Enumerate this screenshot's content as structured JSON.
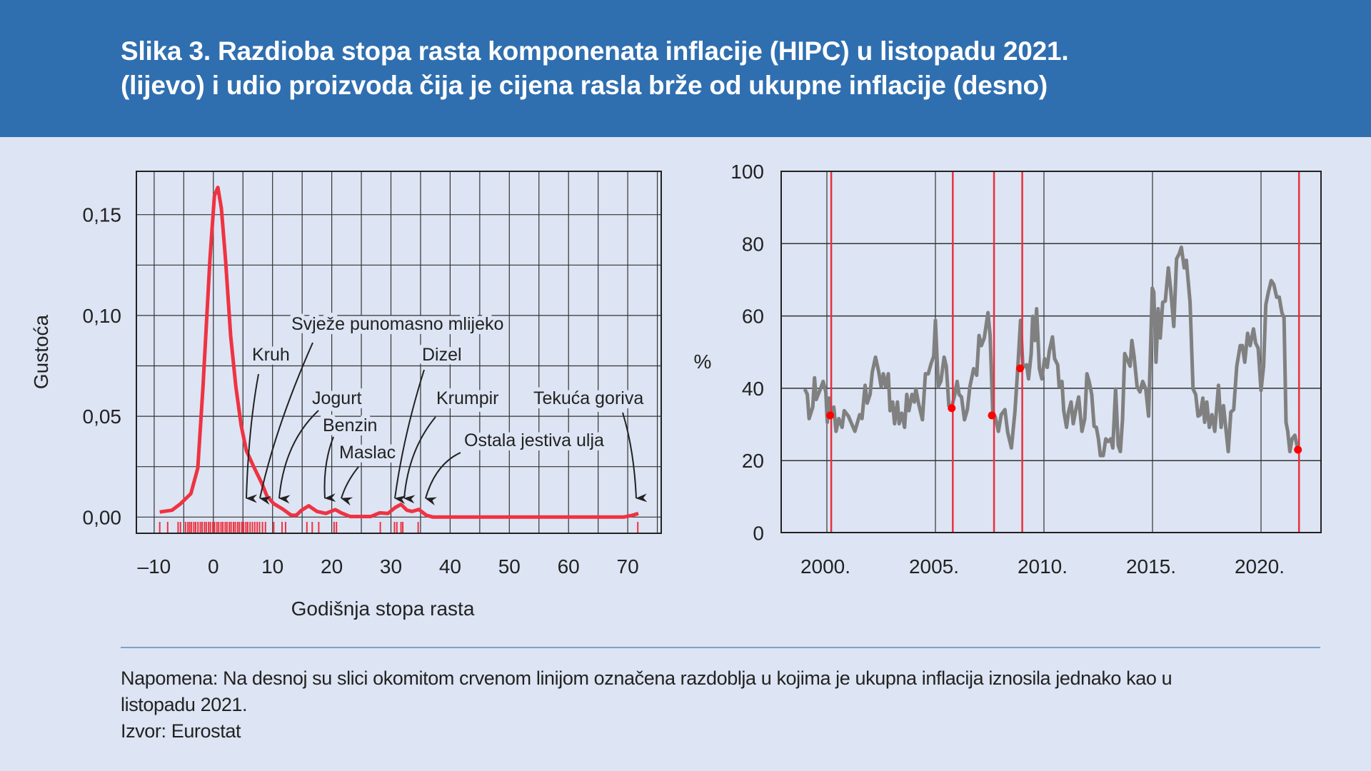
{
  "header": {
    "title_line1": "Slika 3. Razdioba stopa rasta komponenata inflacije (HIPC) u listopadu 2021.",
    "title_line2": "(lijevo) i udio proizvoda čija je cijena rasla brže od ukupne inflacije (desno)"
  },
  "colors": {
    "header_bg": "#2f6fb0",
    "background": "#dde4f3",
    "density": "#ee3342",
    "share_line": "#808080",
    "marker": "#ff0000",
    "vline": "#e8303e"
  },
  "chart_data": [
    {
      "type": "line",
      "title": "",
      "xlabel": "Godišnja stopa rasta",
      "ylabel": "Gustoća",
      "xlim": [
        -13,
        76
      ],
      "ylim": [
        -0.0083,
        0.1635
      ],
      "xticks": [
        -10,
        0,
        10,
        20,
        30,
        40,
        50,
        60,
        70
      ],
      "xtick_labels": [
        "–10",
        "0",
        "10",
        "20",
        "30",
        "40",
        "50",
        "60",
        "70"
      ],
      "yticks": [
        0,
        0.05,
        0.1,
        0.15
      ],
      "ytick_labels": [
        "0,00",
        "0,05",
        "0,10",
        "0,15"
      ],
      "grid": true,
      "series": [
        {
          "name": "density",
          "x": [
            -9.06,
            -7.0,
            -5.56,
            -3.8,
            -2.63,
            -1.75,
            -0.58,
            0.18,
            0.76,
            1.35,
            2.05,
            2.92,
            3.8,
            4.68,
            5.56,
            6.73,
            8.19,
            9.06,
            10.23,
            11.7,
            13.16,
            14.0,
            14.9,
            16.1,
            17.5,
            19.0,
            20.6,
            21.6,
            23.1,
            26.6,
            28.1,
            29.5,
            30.7,
            31.7,
            32.7,
            33.6,
            34.7,
            36.0,
            37.1,
            69.3,
            70.8,
            71.8
          ],
          "y": [
            0.0025,
            0.0034,
            0.0066,
            0.0116,
            0.0243,
            0.0647,
            0.1279,
            0.1595,
            0.1635,
            0.1532,
            0.1279,
            0.09,
            0.0647,
            0.0457,
            0.0331,
            0.0255,
            0.0167,
            0.0104,
            0.0066,
            0.004,
            0.0009,
            0.0009,
            0.0034,
            0.0056,
            0.0028,
            0.0018,
            0.0037,
            0.0021,
            0.0003,
            0.0003,
            0.0021,
            0.0018,
            0.0047,
            0.0063,
            0.0034,
            0.0028,
            0.0038,
            0.0009,
            0,
            0,
            0.0009,
            0.0018
          ]
        }
      ],
      "rug": [
        -9.06,
        -7.72,
        -5.96,
        -5.56,
        -4.7,
        -4.3,
        -4.0,
        -3.7,
        -3.3,
        -3.0,
        -2.6,
        -2.2,
        -1.9,
        -1.5,
        -1.2,
        -0.8,
        -0.5,
        -0.1,
        0.2,
        0.6,
        0.9,
        1.3,
        1.6,
        2.0,
        2.3,
        2.7,
        3.0,
        3.4,
        3.7,
        4.1,
        4.4,
        4.8,
        5.1,
        5.5,
        5.8,
        6.2,
        6.6,
        7.0,
        7.4,
        7.8,
        8.3,
        8.8,
        10.2,
        11.6,
        12.2,
        15.8,
        16.7,
        17.8,
        20.4,
        20.8,
        28.2,
        30.6,
        31.0,
        31.7,
        32.0,
        34.6,
        71.7
      ],
      "annotations": [
        {
          "label": "Svježe punomasno mlijeko",
          "x": 8.5
        },
        {
          "label": "Kruh",
          "x": 6.3
        },
        {
          "label": "Dizel",
          "x": 31.0
        },
        {
          "label": "Jogurt",
          "x": 11.7
        },
        {
          "label": "Krumpir",
          "x": 32.0
        },
        {
          "label": "Tekuća goriva",
          "x": 71.7
        },
        {
          "label": "Benzin",
          "x": 19.5
        },
        {
          "label": "Ostala jestiva ulja",
          "x": 35.6
        },
        {
          "label": "Maslac",
          "x": 22.2
        }
      ]
    },
    {
      "type": "line",
      "title": "",
      "xlabel": "",
      "ylabel": "%",
      "xlim": [
        1997.9,
        2022.8
      ],
      "ylim": [
        0,
        100
      ],
      "xticks": [
        2000,
        2005,
        2010,
        2015,
        2020
      ],
      "xtick_labels": [
        "2000.",
        "2005.",
        "2010.",
        "2015.",
        "2020."
      ],
      "yticks": [
        0,
        20,
        40,
        60,
        80,
        100
      ],
      "ytick_labels": [
        "0",
        "20",
        "40",
        "60",
        "80",
        "100"
      ],
      "grid": true,
      "series": [
        {
          "name": "share",
          "x": [
            1998.98,
            1999.1,
            1999.18,
            1999.35,
            1999.43,
            1999.51,
            1999.6,
            1999.7,
            1999.83,
            1999.95,
            2000.02,
            2000.1,
            2000.18,
            2000.32,
            2000.42,
            2000.55,
            2000.7,
            2000.8,
            2000.99,
            2001.29,
            2001.51,
            2001.62,
            2001.76,
            2001.86,
            2001.99,
            2002.09,
            2002.24,
            2002.38,
            2002.5,
            2002.6,
            2002.7,
            2002.83,
            2002.91,
            2003.03,
            2003.12,
            2003.25,
            2003.33,
            2003.45,
            2003.58,
            2003.68,
            2003.78,
            2003.92,
            2004.03,
            2004.1,
            2004.22,
            2004.4,
            2004.54,
            2004.67,
            2004.8,
            2004.92,
            2005.0,
            2005.13,
            2005.25,
            2005.4,
            2005.5,
            2005.62,
            2005.74,
            2005.88,
            2006.0,
            2006.09,
            2006.2,
            2006.34,
            2006.47,
            2006.59,
            2006.76,
            2006.9,
            2007.01,
            2007.12,
            2007.25,
            2007.42,
            2007.52,
            2007.64,
            2007.76,
            2007.9,
            2008.03,
            2008.2,
            2008.33,
            2008.5,
            2008.66,
            2008.8,
            2008.92,
            2009.03,
            2009.2,
            2009.29,
            2009.41,
            2009.48,
            2009.58,
            2009.66,
            2009.79,
            2009.9,
            2010.03,
            2010.15,
            2010.25,
            2010.39,
            2010.49,
            2010.63,
            2010.7,
            2010.83,
            2010.91,
            2011.04,
            2011.13,
            2011.25,
            2011.35,
            2011.47,
            2011.6,
            2011.75,
            2011.88,
            2011.98,
            2012.08,
            2012.2,
            2012.31,
            2012.41,
            2012.51,
            2012.6,
            2012.73,
            2012.85,
            2012.96,
            2013.08,
            2013.17,
            2013.3,
            2013.42,
            2013.52,
            2013.62,
            2013.72,
            2013.82,
            2013.97,
            2014.05,
            2014.15,
            2014.29,
            2014.42,
            2014.55,
            2014.69,
            2014.82,
            2014.92,
            2014.99,
            2015.06,
            2015.16,
            2015.26,
            2015.36,
            2015.47,
            2015.59,
            2015.73,
            2015.84,
            2015.98,
            2016.11,
            2016.23,
            2016.33,
            2016.46,
            2016.56,
            2016.73,
            2016.87,
            2016.99,
            2017.1,
            2017.2,
            2017.32,
            2017.4,
            2017.5,
            2017.62,
            2017.74,
            2017.87,
            2018.04,
            2018.16,
            2018.27,
            2018.49,
            2018.61,
            2018.74,
            2018.88,
            2019.04,
            2019.14,
            2019.25,
            2019.38,
            2019.5,
            2019.65,
            2019.75,
            2019.87,
            2020.0,
            2020.12,
            2020.22,
            2020.34,
            2020.47,
            2020.59,
            2020.72,
            2020.84,
            2020.96,
            2021.06,
            2021.15,
            2021.23,
            2021.33,
            2021.43,
            2021.56,
            2021.68
          ],
          "y": [
            39.8,
            38.3,
            31.6,
            34.8,
            42.9,
            36.9,
            38.3,
            39.8,
            41.9,
            39.0,
            30.6,
            37.3,
            32.7,
            34.8,
            28.1,
            31.6,
            29.2,
            33.8,
            32.3,
            28.1,
            32.7,
            31.6,
            40.8,
            35.9,
            38.3,
            44.4,
            48.6,
            44.7,
            40.5,
            44.0,
            40.5,
            44.0,
            33.8,
            36.2,
            30.2,
            36.2,
            30.2,
            33.1,
            29.2,
            38.3,
            33.8,
            38.3,
            36.2,
            39.8,
            35.9,
            31.3,
            44.0,
            44.0,
            46.8,
            48.9,
            58.8,
            40.5,
            41.9,
            48.6,
            46.1,
            35.2,
            34.5,
            38.0,
            41.9,
            38.3,
            37.6,
            31.3,
            34.1,
            40.5,
            45.4,
            43.6,
            54.6,
            51.8,
            53.9,
            60.9,
            54.6,
            33.4,
            32.0,
            28.1,
            32.7,
            34.1,
            27.8,
            23.5,
            33.4,
            46.1,
            58.8,
            45.8,
            46.5,
            42.6,
            49.6,
            59.9,
            53.2,
            62.0,
            45.4,
            42.6,
            48.2,
            45.8,
            50.4,
            54.2,
            48.2,
            46.5,
            40.5,
            41.9,
            33.8,
            29.2,
            33.4,
            36.2,
            30.2,
            34.1,
            37.6,
            28.1,
            31.6,
            44.0,
            41.9,
            38.3,
            29.5,
            29.2,
            26.0,
            21.4,
            21.4,
            26.0,
            25.3,
            26.0,
            23.5,
            39.8,
            24.2,
            22.5,
            31.3,
            49.6,
            48.2,
            46.1,
            53.2,
            48.9,
            40.5,
            39.0,
            41.9,
            39.8,
            32.3,
            53.2,
            67.7,
            66.6,
            47.2,
            62.0,
            53.9,
            63.8,
            64.1,
            73.3,
            67.3,
            57.1,
            75.8,
            77.2,
            79.0,
            73.3,
            75.4,
            63.8,
            39.8,
            38.3,
            32.3,
            32.7,
            37.3,
            30.6,
            36.2,
            29.2,
            32.7,
            28.1,
            40.8,
            29.2,
            35.2,
            22.5,
            33.4,
            34.1,
            46.1,
            51.8,
            51.8,
            47.2,
            55.2,
            51.8,
            56.4,
            52.5,
            51.1,
            39.4,
            46.1,
            63.1,
            66.6,
            69.8,
            68.7,
            65.2,
            65.2,
            60.9,
            59.5,
            30.6,
            28.1,
            22.5,
            26.0,
            27.0,
            23.5
          ]
        }
      ],
      "vlines": [
        2000.2,
        2005.8,
        2007.7,
        2009.0,
        2021.75
      ],
      "markers": {
        "x": [
          2000.15,
          2005.75,
          2007.6,
          2008.9,
          2021.7
        ],
        "y": [
          32.5,
          34.5,
          32.5,
          45.5,
          23.0
        ]
      }
    }
  ],
  "note": {
    "line1": "Napomena: Na desnoj su slici okomitom crvenom linijom označena razdoblja u kojima je ukupna inflacija iznosila jednako kao u",
    "line2": "listopadu 2021.",
    "source": "Izvor: Eurostat"
  }
}
